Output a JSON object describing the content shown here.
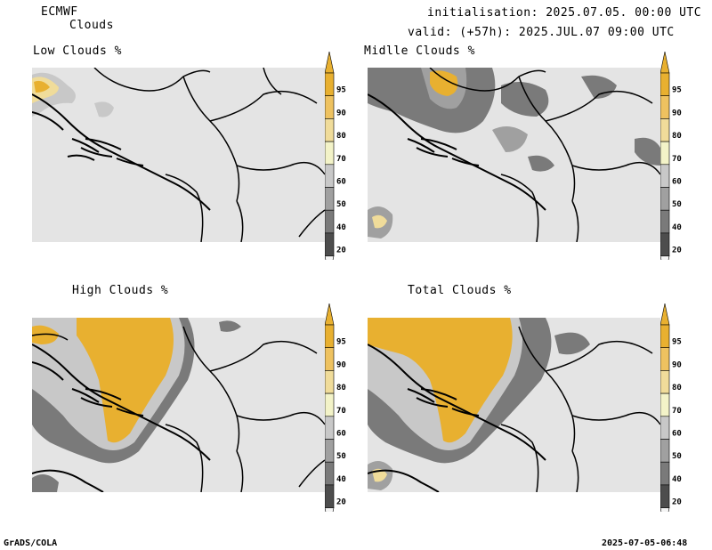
{
  "header": {
    "model": "ECMWF",
    "product": "Clouds",
    "init": "initialisation: 2025.07.05. 00:00 UTC",
    "valid": "valid: (+57h): 2025.JUL.07 09:00 UTC"
  },
  "panels": [
    {
      "id": "low",
      "title": "Low Clouds %"
    },
    {
      "id": "middle",
      "title": "Midlle Clouds %"
    },
    {
      "id": "high",
      "title": "High Clouds %"
    },
    {
      "id": "total",
      "title": "Total Clouds %"
    }
  ],
  "legend": {
    "levels": [
      "20",
      "40",
      "50",
      "60",
      "70",
      "80",
      "90",
      "95"
    ],
    "colors": {
      "lt20": "#f4f4f4",
      "c20": "#4d4d4d",
      "c40": "#7a7a7a",
      "c50": "#a0a0a0",
      "c60": "#c8c8c8",
      "c70": "#f3f3c8",
      "c80": "#f0dc9a",
      "c90": "#eec260",
      "c95": "#e8b030"
    }
  },
  "map_background": "#e4e4e4",
  "footer": {
    "left": "GrADS/COLA",
    "right": "2025-07-05-06:48"
  }
}
